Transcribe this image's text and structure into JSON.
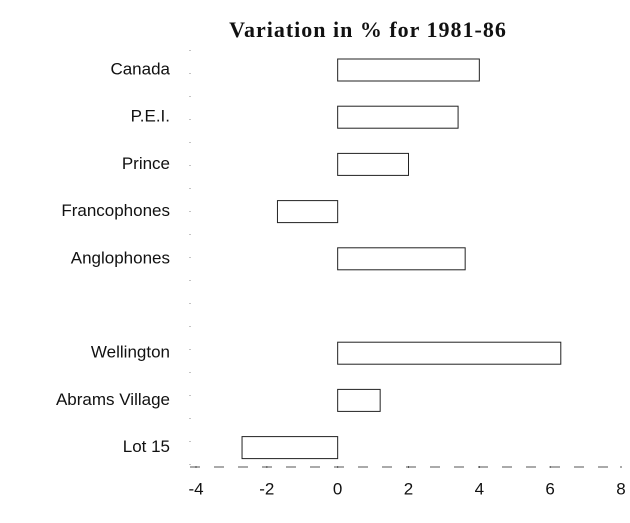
{
  "chart_data": {
    "type": "bar",
    "orientation": "horizontal",
    "title": "Variation in % for 1981-86",
    "categories": [
      "Canada",
      "P.E.I.",
      "Prince",
      "Francophones",
      "Anglophones",
      null,
      "Wellington",
      "Abrams Village",
      "Lot 15"
    ],
    "values": [
      4.0,
      3.4,
      2.0,
      -1.7,
      3.6,
      null,
      6.3,
      1.2,
      -2.7
    ],
    "color": "#ffffff",
    "xlim": [
      -4,
      8
    ],
    "xticks": [
      -4,
      -2,
      0,
      2,
      4,
      6,
      8
    ],
    "grid": false
  }
}
